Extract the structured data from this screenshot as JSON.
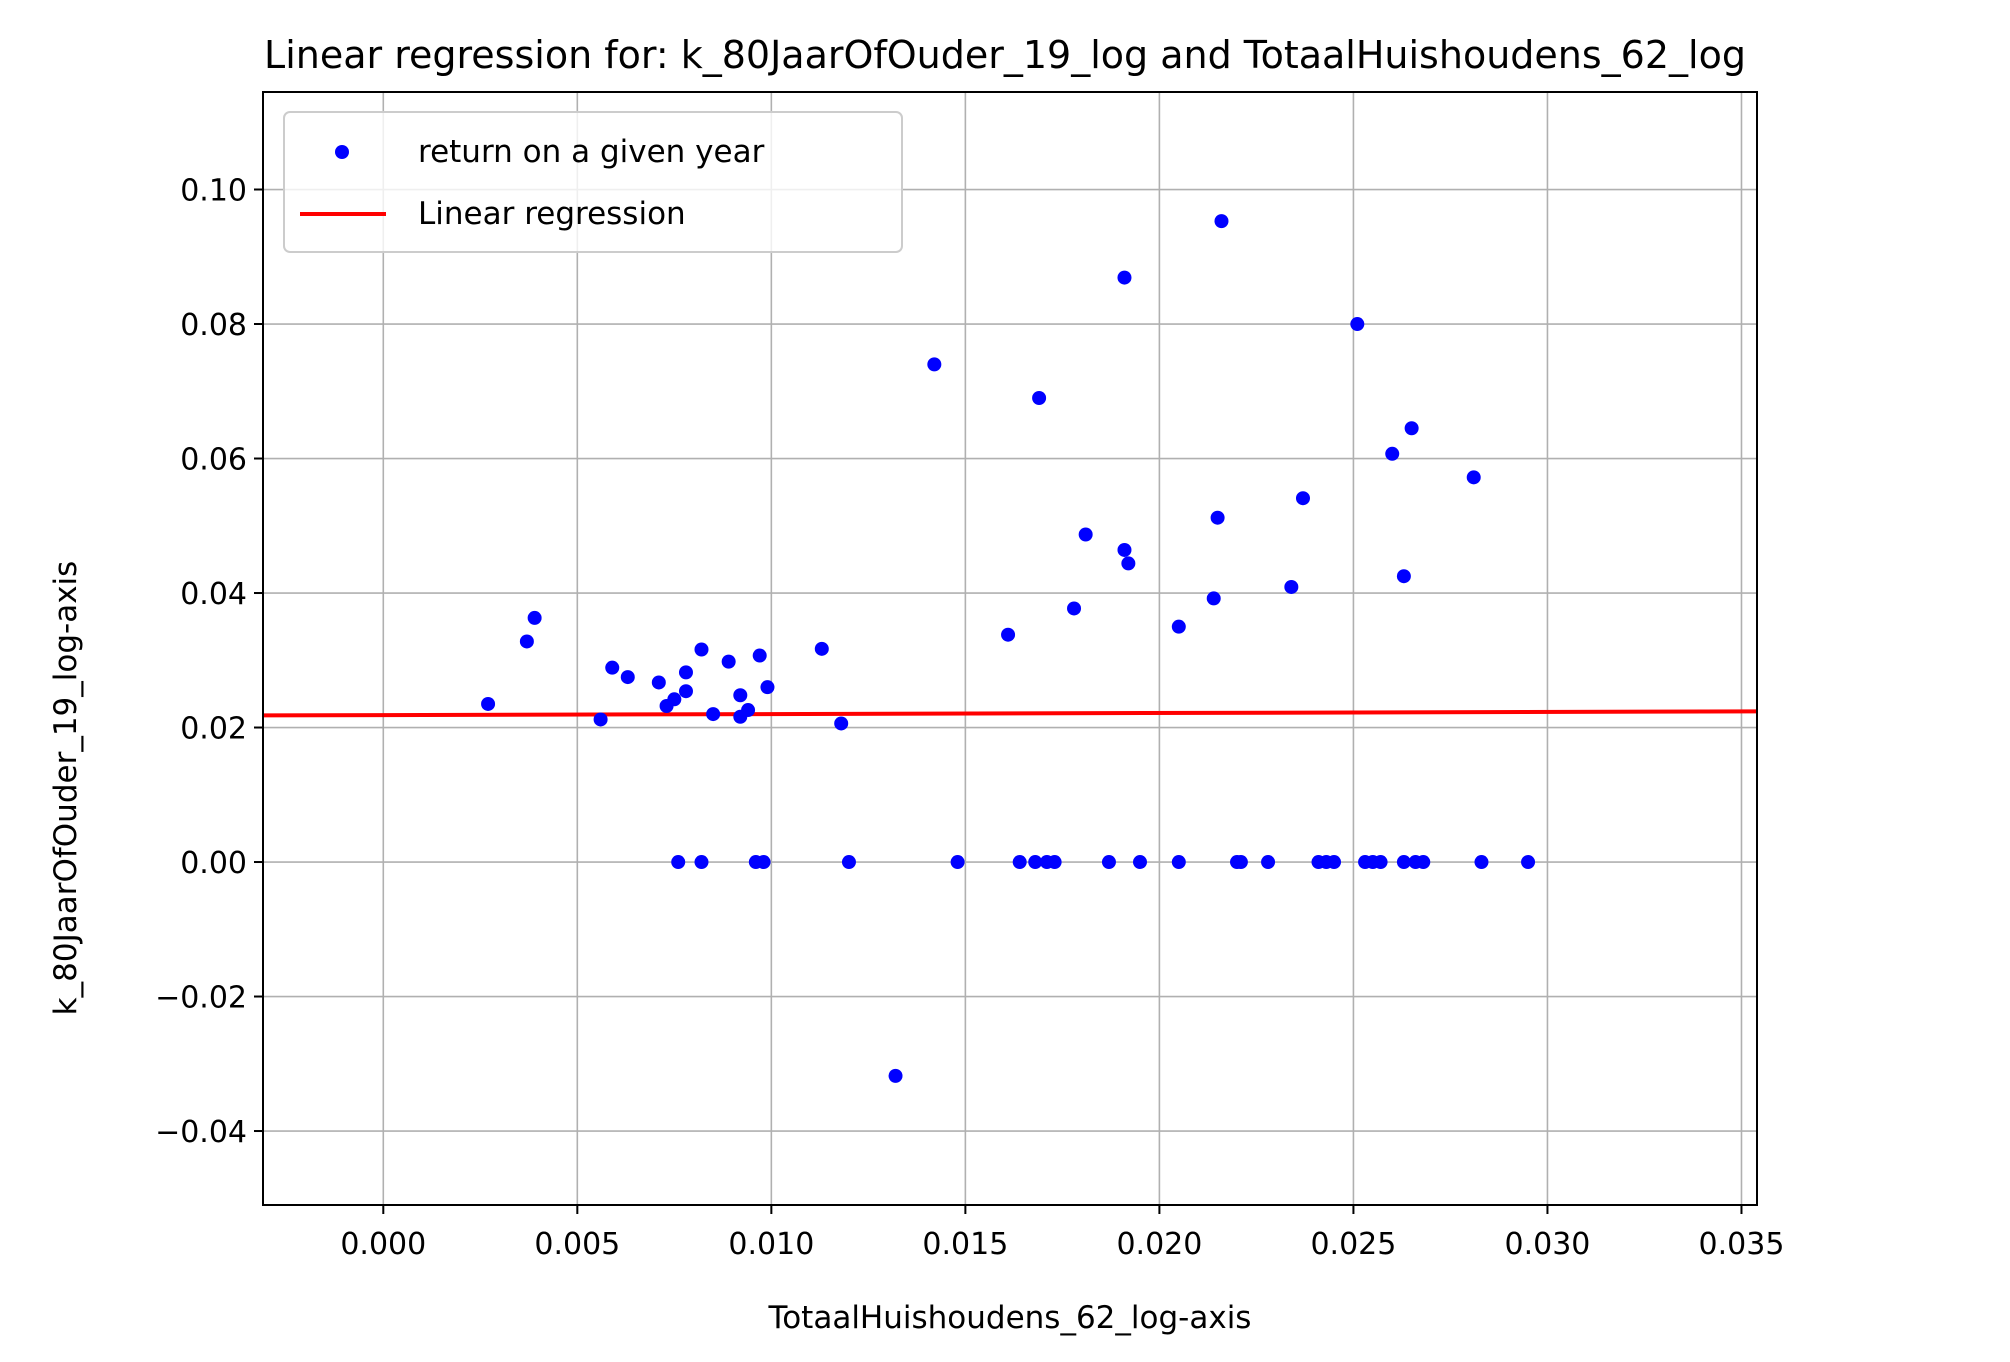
{
  "chart_data": {
    "type": "scatter",
    "title": "Linear regression for: k_80JaarOfOuder_19_log and TotaalHuishoudens_62_log",
    "xlabel": "TotaalHuishoudens_62_log-axis",
    "ylabel": "k_80JaarOfOuder_19_log-axis",
    "xlim": [
      -0.0031,
      0.0354
    ],
    "ylim": [
      -0.051,
      0.1145
    ],
    "xticks": [
      0.0,
      0.005,
      0.01,
      0.015,
      0.02,
      0.025,
      0.03,
      0.035
    ],
    "xtick_labels": [
      "0.000",
      "0.005",
      "0.010",
      "0.015",
      "0.020",
      "0.025",
      "0.030",
      "0.035"
    ],
    "yticks": [
      -0.04,
      -0.02,
      0.0,
      0.02,
      0.04,
      0.06,
      0.08,
      0.1
    ],
    "ytick_labels": [
      "−0.04",
      "−0.02",
      "0.00",
      "0.02",
      "0.04",
      "0.06",
      "0.08",
      "0.10"
    ],
    "grid": true,
    "legend_position": "upper-left",
    "series": [
      {
        "name": "return on a given year",
        "kind": "scatter",
        "color": "#0000ff",
        "points": [
          [
            0.0027,
            0.0235
          ],
          [
            0.0037,
            0.0328
          ],
          [
            0.0039,
            0.0363
          ],
          [
            0.0056,
            0.0212
          ],
          [
            0.0059,
            0.0289
          ],
          [
            0.0063,
            0.0275
          ],
          [
            0.0071,
            0.0267
          ],
          [
            0.0073,
            0.0232
          ],
          [
            0.0075,
            0.0242
          ],
          [
            0.0078,
            0.0282
          ],
          [
            0.0078,
            0.0254
          ],
          [
            0.0082,
            0.0316
          ],
          [
            0.0085,
            0.022
          ],
          [
            0.0089,
            0.0298
          ],
          [
            0.0092,
            0.0216
          ],
          [
            0.0092,
            0.0248
          ],
          [
            0.0094,
            0.0226
          ],
          [
            0.0097,
            0.0307
          ],
          [
            0.0099,
            0.026
          ],
          [
            0.0113,
            0.0317
          ],
          [
            0.0118,
            0.0206
          ],
          [
            0.0132,
            -0.0318
          ],
          [
            0.0142,
            0.074
          ],
          [
            0.0161,
            0.0338
          ],
          [
            0.0169,
            0.069
          ],
          [
            0.0178,
            0.0377
          ],
          [
            0.0181,
            0.0487
          ],
          [
            0.0191,
            0.0869
          ],
          [
            0.0191,
            0.0464
          ],
          [
            0.0192,
            0.0444
          ],
          [
            0.0205,
            0.035
          ],
          [
            0.0214,
            0.0392
          ],
          [
            0.0215,
            0.0512
          ],
          [
            0.0216,
            0.0953
          ],
          [
            0.0234,
            0.0409
          ],
          [
            0.0237,
            0.0541
          ],
          [
            0.0251,
            0.08
          ],
          [
            0.026,
            0.0607
          ],
          [
            0.0263,
            0.0425
          ],
          [
            0.0265,
            0.0645
          ],
          [
            0.0281,
            0.0572
          ],
          [
            0.0076,
            0.0
          ],
          [
            0.0082,
            0.0
          ],
          [
            0.0096,
            0.0
          ],
          [
            0.0098,
            0.0
          ],
          [
            0.012,
            0.0
          ],
          [
            0.0148,
            0.0
          ],
          [
            0.0164,
            0.0
          ],
          [
            0.0168,
            0.0
          ],
          [
            0.0171,
            0.0
          ],
          [
            0.0173,
            0.0
          ],
          [
            0.0187,
            0.0
          ],
          [
            0.0195,
            0.0
          ],
          [
            0.0205,
            0.0
          ],
          [
            0.022,
            0.0
          ],
          [
            0.0221,
            0.0
          ],
          [
            0.0228,
            0.0
          ],
          [
            0.0241,
            0.0
          ],
          [
            0.0243,
            0.0
          ],
          [
            0.0245,
            0.0
          ],
          [
            0.0253,
            0.0
          ],
          [
            0.0255,
            0.0
          ],
          [
            0.0257,
            0.0
          ],
          [
            0.0263,
            0.0
          ],
          [
            0.0266,
            0.0
          ],
          [
            0.0268,
            0.0
          ],
          [
            0.0283,
            0.0
          ],
          [
            0.0295,
            0.0
          ]
        ]
      },
      {
        "name": "Linear regression",
        "kind": "line",
        "color": "#ff0000",
        "x": [
          -0.0031,
          0.0354
        ],
        "y": [
          0.0218,
          0.0224
        ]
      }
    ]
  }
}
